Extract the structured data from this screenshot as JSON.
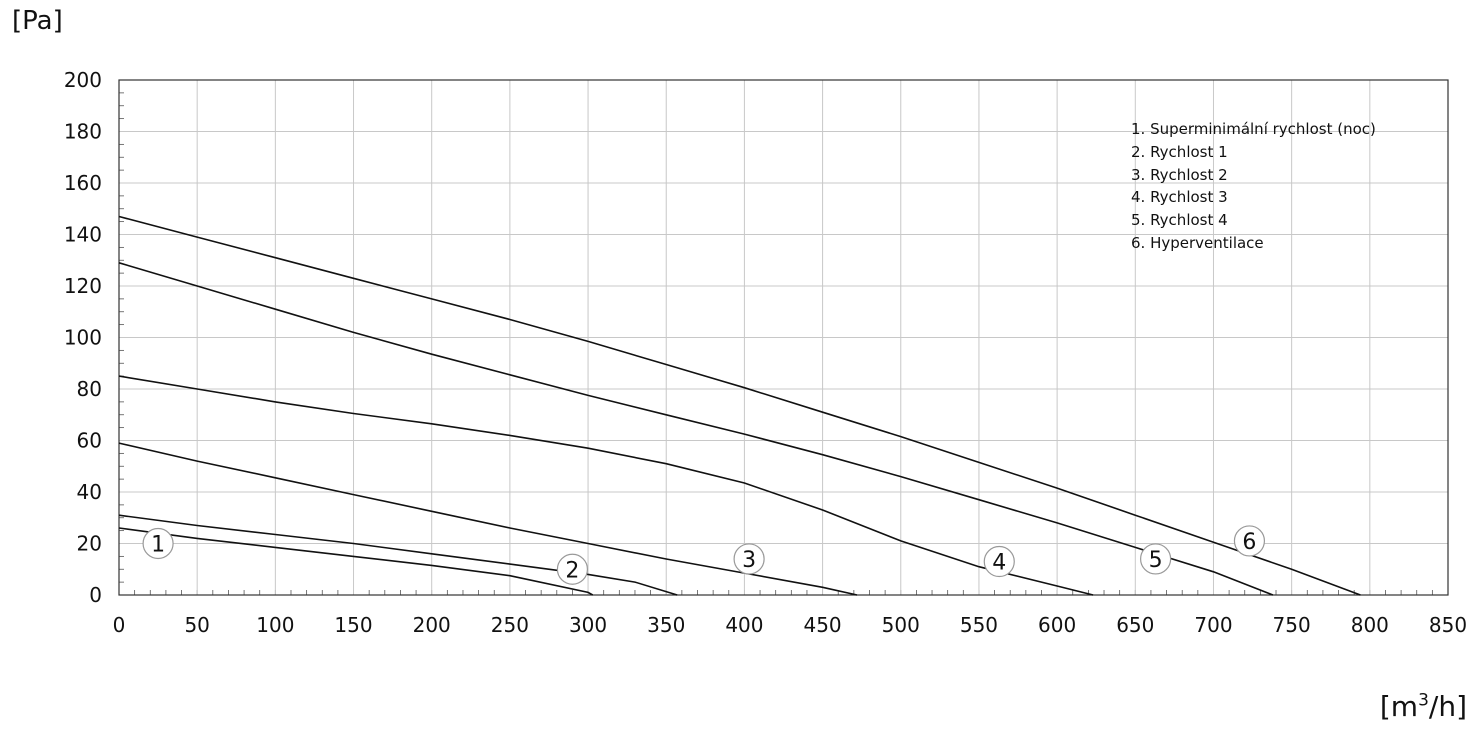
{
  "chart_data": {
    "type": "line",
    "ylabel": "[Pa]",
    "xlabel_main": "[m",
    "xlabel_sup": "3",
    "xlabel_tail": "/h]",
    "xlim": [
      0,
      850
    ],
    "ylim": [
      0,
      200
    ],
    "x_ticks": [
      0,
      50,
      100,
      150,
      200,
      250,
      300,
      350,
      400,
      450,
      500,
      550,
      600,
      650,
      700,
      750,
      800,
      850
    ],
    "y_ticks": [
      0,
      20,
      40,
      60,
      80,
      100,
      120,
      140,
      160,
      180,
      200
    ],
    "grid": true,
    "legend_position": "top-right",
    "legend": [
      "1. Superminimální rychlost (noc)",
      "2. Rychlost 1",
      "3. Rychlost 2",
      "4. Rychlost 3",
      "5. Rychlost 4",
      "6. Hyperventilace"
    ],
    "series": [
      {
        "label": "1",
        "label_at": [
          25,
          20
        ],
        "points": [
          [
            0,
            26
          ],
          [
            50,
            22
          ],
          [
            100,
            18.5
          ],
          [
            150,
            15
          ],
          [
            200,
            11.5
          ],
          [
            250,
            7.5
          ],
          [
            300,
            1
          ],
          [
            303,
            0
          ]
        ]
      },
      {
        "label": "2",
        "label_at": [
          290,
          10
        ],
        "points": [
          [
            0,
            31
          ],
          [
            50,
            27
          ],
          [
            100,
            23.5
          ],
          [
            150,
            20
          ],
          [
            200,
            16
          ],
          [
            250,
            12
          ],
          [
            300,
            8
          ],
          [
            330,
            5
          ],
          [
            357,
            0
          ]
        ]
      },
      {
        "label": "3",
        "label_at": [
          403,
          14
        ],
        "points": [
          [
            0,
            59
          ],
          [
            50,
            52
          ],
          [
            100,
            45.5
          ],
          [
            150,
            39
          ],
          [
            200,
            32.5
          ],
          [
            250,
            26
          ],
          [
            300,
            20
          ],
          [
            350,
            14
          ],
          [
            400,
            8.5
          ],
          [
            450,
            3
          ],
          [
            472,
            0
          ]
        ]
      },
      {
        "label": "4",
        "label_at": [
          563,
          13
        ],
        "points": [
          [
            0,
            85
          ],
          [
            50,
            80
          ],
          [
            100,
            75
          ],
          [
            150,
            70.5
          ],
          [
            200,
            66.5
          ],
          [
            250,
            62
          ],
          [
            300,
            57
          ],
          [
            350,
            51
          ],
          [
            400,
            43.5
          ],
          [
            450,
            33
          ],
          [
            500,
            21
          ],
          [
            550,
            11
          ],
          [
            600,
            3.5
          ],
          [
            623,
            0
          ]
        ]
      },
      {
        "label": "5",
        "label_at": [
          663,
          14
        ],
        "points": [
          [
            0,
            129
          ],
          [
            50,
            120
          ],
          [
            100,
            111
          ],
          [
            150,
            102
          ],
          [
            200,
            93.5
          ],
          [
            250,
            85.5
          ],
          [
            300,
            77.5
          ],
          [
            350,
            70
          ],
          [
            400,
            62.5
          ],
          [
            450,
            54.5
          ],
          [
            500,
            46
          ],
          [
            550,
            37
          ],
          [
            600,
            28
          ],
          [
            650,
            18.5
          ],
          [
            700,
            9
          ],
          [
            738,
            0
          ]
        ]
      },
      {
        "label": "6",
        "label_at": [
          723,
          21
        ],
        "points": [
          [
            0,
            147
          ],
          [
            50,
            139
          ],
          [
            100,
            131
          ],
          [
            150,
            123
          ],
          [
            200,
            115
          ],
          [
            250,
            107
          ],
          [
            300,
            98.5
          ],
          [
            350,
            89.5
          ],
          [
            400,
            80.5
          ],
          [
            450,
            71
          ],
          [
            500,
            61.5
          ],
          [
            550,
            51.5
          ],
          [
            600,
            41.5
          ],
          [
            650,
            31
          ],
          [
            700,
            20.5
          ],
          [
            750,
            10
          ],
          [
            794,
            0
          ]
        ]
      }
    ]
  }
}
